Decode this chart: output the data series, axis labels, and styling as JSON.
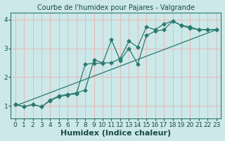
{
  "title": "Courbe de l'humidex pour Pajares - Valgrande",
  "xlabel": "Humidex (Indice chaleur)",
  "bg_color": "#cce8e8",
  "line_color": "#2a7a70",
  "grid_color": "#e8b8b8",
  "xlim": [
    -0.5,
    23.5
  ],
  "ylim": [
    0.55,
    4.25
  ],
  "xticks": [
    0,
    1,
    2,
    3,
    4,
    5,
    6,
    7,
    8,
    9,
    10,
    11,
    12,
    13,
    14,
    15,
    16,
    17,
    18,
    19,
    20,
    21,
    22,
    23
  ],
  "yticks": [
    1,
    2,
    3,
    4
  ],
  "line1_x": [
    0,
    1,
    2,
    3,
    4,
    5,
    6,
    7,
    8,
    9,
    10,
    11,
    12,
    13,
    14,
    15,
    16,
    17,
    18,
    19,
    20,
    21,
    22,
    23
  ],
  "line1_y": [
    1.05,
    0.97,
    1.05,
    0.97,
    1.2,
    1.35,
    1.4,
    1.45,
    1.55,
    2.6,
    2.5,
    2.5,
    2.65,
    3.25,
    3.05,
    3.75,
    3.65,
    3.85,
    3.95,
    3.8,
    3.7,
    3.65,
    3.65,
    3.65
  ],
  "line2_x": [
    0,
    1,
    2,
    3,
    4,
    5,
    6,
    7,
    8,
    9,
    10,
    11,
    12,
    13,
    14,
    15,
    16,
    17,
    18,
    19,
    20,
    21,
    22,
    23
  ],
  "line2_y": [
    1.05,
    0.97,
    1.05,
    0.97,
    1.18,
    1.32,
    1.38,
    1.42,
    2.45,
    2.48,
    2.48,
    3.3,
    2.58,
    3.0,
    2.45,
    3.45,
    3.6,
    3.65,
    3.95,
    3.8,
    3.75,
    3.65,
    3.65,
    3.65
  ],
  "line3_x": [
    0,
    23
  ],
  "line3_y": [
    1.0,
    3.65
  ],
  "title_fontsize": 7,
  "xlabel_fontsize": 8,
  "tick_fontsize": 6.5,
  "title_color": "#1a4a4a",
  "tick_color": "#1a4a4a",
  "xlabel_color": "#1a4a4a"
}
